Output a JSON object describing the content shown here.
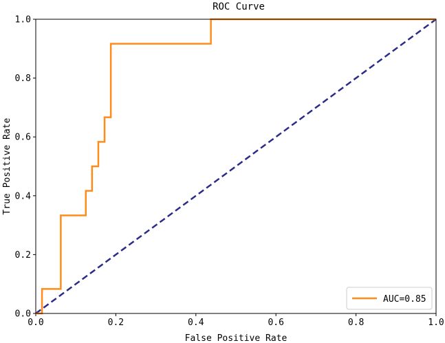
{
  "chart_data": {
    "type": "line",
    "title": "ROC Curve",
    "xlabel": "False Positive Rate",
    "ylabel": "True Positive Rate",
    "xlim": [
      0.0,
      1.0
    ],
    "ylim": [
      0.0,
      1.0
    ],
    "grid": false,
    "legend_position": "lower-right",
    "x_ticks": [
      0.0,
      0.2,
      0.4,
      0.6,
      0.8,
      1.0
    ],
    "x_tick_labels": [
      "0.0",
      "0.2",
      "0.4",
      "0.6",
      "0.8",
      "1.0"
    ],
    "y_ticks": [
      0.0,
      0.2,
      0.4,
      0.6,
      0.8,
      1.0
    ],
    "y_tick_labels": [
      "0.0",
      "0.2",
      "0.4",
      "0.6",
      "0.8",
      "1.0"
    ],
    "series": [
      {
        "name": "AUC=0.85",
        "color": "#ff8c1a",
        "style": "solid",
        "x": [
          0.0,
          0.0156,
          0.0156,
          0.0625,
          0.0625,
          0.125,
          0.125,
          0.1406,
          0.1406,
          0.1563,
          0.1563,
          0.1719,
          0.1719,
          0.1875,
          0.1875,
          0.4375,
          0.4375,
          1.0
        ],
        "y": [
          0.0,
          0.0,
          0.0833,
          0.0833,
          0.3333,
          0.3333,
          0.4167,
          0.4167,
          0.5,
          0.5,
          0.5833,
          0.5833,
          0.6667,
          0.6667,
          0.9167,
          0.9167,
          1.0,
          1.0
        ]
      },
      {
        "name": "",
        "color": "#2b2b8a",
        "style": "dashed",
        "x": [
          0.0,
          1.0
        ],
        "y": [
          0.0,
          1.0
        ]
      }
    ]
  }
}
